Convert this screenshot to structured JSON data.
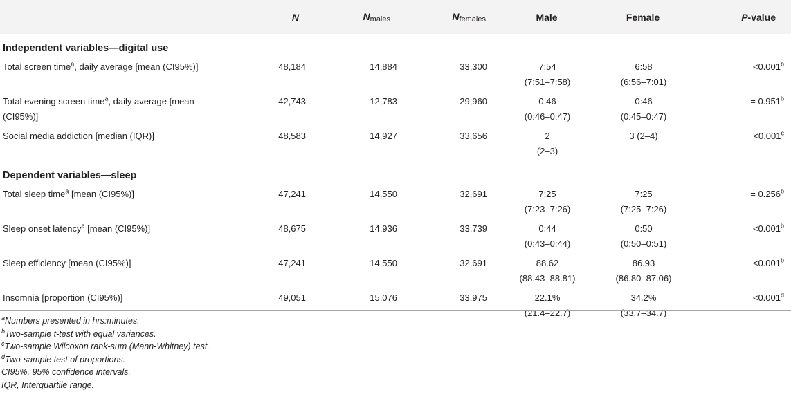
{
  "headers": {
    "label": "",
    "n": "N",
    "n_males_main": "N",
    "n_males_sub": "males",
    "n_females_main": "N",
    "n_females_sub": "females",
    "male": "Male",
    "female": "Female",
    "p_main": "P",
    "p_rest": "-value"
  },
  "sections": [
    {
      "title": "Independent variables—digital use"
    },
    {
      "title": "Dependent variables—sleep"
    }
  ],
  "rows": [
    {
      "label1": "Total screen time",
      "sup1": "a",
      "label2": ", daily average [mean (CI95%)]",
      "n": "48,184",
      "n_males": "14,884",
      "n_females": "33,300",
      "male1": "7:54",
      "male2": "(7:51–7:58)",
      "female1": "6:58",
      "female2": "(6:56–7:01)",
      "p": "<0.001",
      "p_sup": "b"
    },
    {
      "label1": "Total evening screen time",
      "sup1": "a",
      "label2": ", daily average [mean (CI95%)]",
      "n": "42,743",
      "n_males": "12,783",
      "n_females": "29,960",
      "male1": "0:46",
      "male2": "(0:46–0:47)",
      "female1": "0:46",
      "female2": "(0:45–0:47)",
      "p": "= 0.951",
      "p_sup": "b"
    },
    {
      "label1": "Social media addiction [median (IQR)]",
      "sup1": "",
      "label2": "",
      "n": "48,583",
      "n_males": "14,927",
      "n_females": "33,656",
      "male1": "2",
      "male2": "(2–3)",
      "female1": "3 (2–4)",
      "female2": "",
      "p": "<0.001",
      "p_sup": "c"
    },
    {
      "label1": "Total sleep time",
      "sup1": "a",
      "label2": " [mean (CI95%)]",
      "n": "47,241",
      "n_males": "14,550",
      "n_females": "32,691",
      "male1": "7:25",
      "male2": "(7:23–7:26)",
      "female1": "7:25",
      "female2": "(7:25–7:26)",
      "p": "= 0.256",
      "p_sup": "b"
    },
    {
      "label1": "Sleep onset latency",
      "sup1": "a",
      "label2": " [mean (CI95%)]",
      "n": "48,675",
      "n_males": "14,936",
      "n_females": "33,739",
      "male1": "0:44",
      "male2": "(0:43–0:44)",
      "female1": "0:50",
      "female2": "(0:50–0:51)",
      "p": "<0.001",
      "p_sup": "b"
    },
    {
      "label1": "Sleep efficiency [mean (CI95%)]",
      "sup1": "",
      "label2": "",
      "n": "47,241",
      "n_males": "14,550",
      "n_females": "32,691",
      "male1": "88.62",
      "male2": "(88.43–88.81)",
      "female1": "86.93",
      "female2": "(86.80–87.06)",
      "p": "<0.001",
      "p_sup": "b"
    },
    {
      "label1": "Insomnia [proportion (CI95%)]",
      "sup1": "",
      "label2": "",
      "n": "49,051",
      "n_males": "15,076",
      "n_females": "33,975",
      "male1": "22.1%",
      "male2": "(21.4–22.7)",
      "female1": "34.2%",
      "female2": "(33.7–34.7)",
      "p": "<0.001",
      "p_sup": "d"
    }
  ],
  "footnotes": [
    {
      "sup": "a",
      "text": "Numbers presented in hrs:minutes."
    },
    {
      "sup": "b",
      "text": "Two-sample t-test with equal variances."
    },
    {
      "sup": "c",
      "text": "Two-sample Wilcoxon rank-sum (Mann-Whitney) test."
    },
    {
      "sup": "d",
      "text": "Two-sample test of proportions."
    },
    {
      "sup": "",
      "text": "CI95%, 95% confidence intervals."
    },
    {
      "sup": "",
      "text": "IQR, Interquartile range."
    }
  ]
}
